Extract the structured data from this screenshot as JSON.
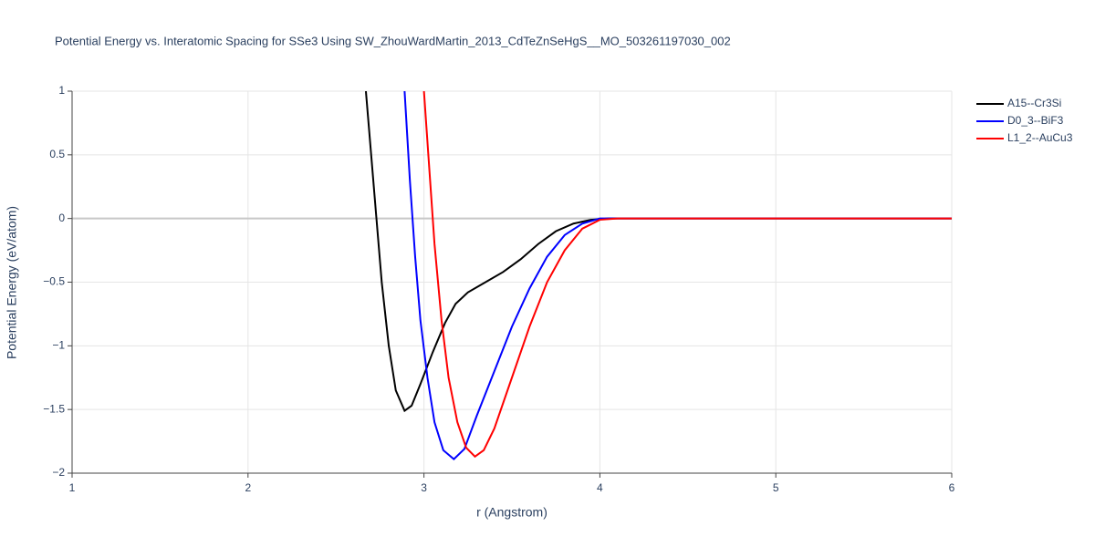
{
  "chart_data": {
    "type": "line",
    "title": "Potential Energy vs. Interatomic Spacing for SSe3 Using SW_ZhouWardMartin_2013_CdTeZnSeHgS__MO_503261197030_002",
    "x_label": "r (Angstrom)",
    "y_label": "Potential Energy (eV/atom)",
    "xlim": [
      1,
      6
    ],
    "xticks": [
      1,
      2,
      3,
      4,
      5,
      6
    ],
    "ylim": [
      -2,
      1
    ],
    "yticks": [
      {
        "value": -2,
        "label": "−2"
      },
      {
        "value": -1.5,
        "label": "−1.5"
      },
      {
        "value": -1,
        "label": "−1"
      },
      {
        "value": -0.5,
        "label": "−0.5"
      },
      0,
      0.5,
      1
    ],
    "grid": true,
    "legend": "top-right",
    "series": [
      {
        "name": "A15--Cr3Si",
        "color": "#000000",
        "x": [
          2.67,
          2.7,
          2.73,
          2.76,
          2.8,
          2.84,
          2.89,
          2.93,
          2.98,
          3.05,
          3.12,
          3.18,
          3.25,
          3.35,
          3.45,
          3.55,
          3.65,
          3.75,
          3.85,
          3.95,
          4.05,
          6
        ],
        "values": [
          1.0,
          0.5,
          0.0,
          -0.5,
          -1.0,
          -1.35,
          -1.51,
          -1.47,
          -1.3,
          -1.05,
          -0.82,
          -0.67,
          -0.58,
          -0.5,
          -0.42,
          -0.32,
          -0.2,
          -0.1,
          -0.04,
          -0.01,
          0,
          0
        ]
      },
      {
        "name": "D0_3--BiF3",
        "color": "#0000ff",
        "x": [
          2.89,
          2.92,
          2.95,
          2.98,
          3.02,
          3.06,
          3.11,
          3.17,
          3.23,
          3.3,
          3.4,
          3.5,
          3.6,
          3.7,
          3.8,
          3.9,
          4.0,
          6
        ],
        "values": [
          1.0,
          0.3,
          -0.3,
          -0.8,
          -1.25,
          -1.6,
          -1.82,
          -1.89,
          -1.81,
          -1.55,
          -1.2,
          -0.85,
          -0.55,
          -0.3,
          -0.13,
          -0.04,
          0,
          0
        ]
      },
      {
        "name": "L1_2--AuCu3",
        "color": "#ff0000",
        "x": [
          3.0,
          3.03,
          3.06,
          3.1,
          3.14,
          3.19,
          3.24,
          3.29,
          3.34,
          3.4,
          3.5,
          3.6,
          3.7,
          3.8,
          3.9,
          4.0,
          4.1,
          6
        ],
        "values": [
          1.0,
          0.4,
          -0.2,
          -0.8,
          -1.25,
          -1.6,
          -1.8,
          -1.87,
          -1.82,
          -1.65,
          -1.25,
          -0.85,
          -0.5,
          -0.25,
          -0.08,
          -0.01,
          0,
          0
        ]
      }
    ]
  }
}
